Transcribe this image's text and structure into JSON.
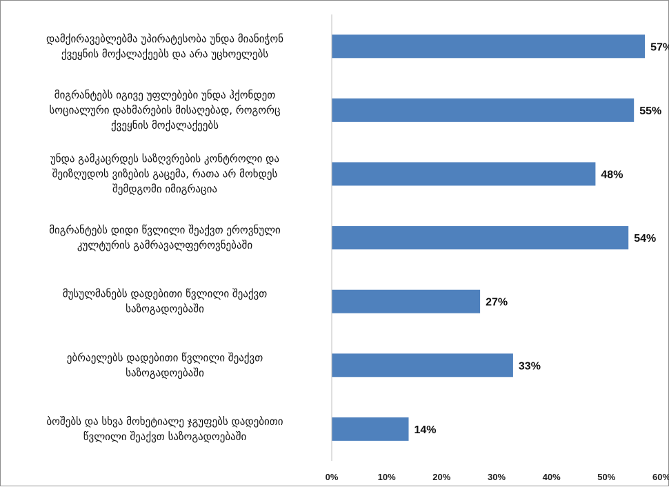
{
  "chart_data": {
    "type": "bar",
    "orientation": "horizontal",
    "categories": [
      [
        "დამქირავებლებმა უპირატესობა უნდა მიანიჭონ",
        "ქვეყნის მოქალაქეებს და არა უცხოელებს"
      ],
      [
        "მიგრანტებს იგივე უფლებები უნდა ჰქონდეთ",
        "სოციალური დახმარების მისაღებად, როგორც",
        "ქვეყნის მოქალაქეებს"
      ],
      [
        "უნდა გამკაცრდეს საზღვრების კონტროლი და",
        "შეიზღუდოს ვიზების გაცემა, რათა არ მოხდეს",
        "შემდგომი იმიგრაცია"
      ],
      [
        "მიგრანტებს დიდი წვლილი შეაქვთ  ეროვნული",
        "კულტურის გამრავალფეროვნებაში"
      ],
      [
        "მუსულმანებს დადებითი წვლილი შეაქვთ",
        "საზოგადოებაში"
      ],
      [
        "ებრაელებს დადებითი წვლილი შეაქვთ",
        "საზოგადოებაში"
      ],
      [
        "ბოშებს და სხვა მოხეტიალე ჯგუფებს დადებითი",
        "წვლილი შეაქვთ საზოგადოებაში"
      ]
    ],
    "values": [
      57,
      55,
      48,
      54,
      27,
      33,
      14
    ],
    "data_labels": [
      "57%",
      "55%",
      "48%",
      "54%",
      "27%",
      "33%",
      "14%"
    ],
    "x_ticks": [
      "0%",
      "10%",
      "20%",
      "30%",
      "40%",
      "50%",
      "60%"
    ],
    "xlim": [
      0,
      60
    ],
    "bar_color": "#4f81bd",
    "grid": false,
    "legend": "none",
    "title": "",
    "xlabel": "",
    "ylabel": ""
  }
}
